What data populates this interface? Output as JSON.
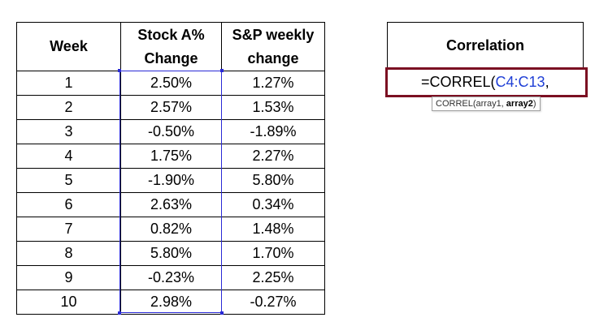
{
  "table": {
    "headers": {
      "week": "Week",
      "stock_a_line1": "Stock A%",
      "stock_a_line2": "Change",
      "sp_line1": "S&P weekly",
      "sp_line2": "change"
    },
    "rows": [
      {
        "week": "1",
        "stock_a": "2.50%",
        "sp": "1.27%"
      },
      {
        "week": "2",
        "stock_a": "2.57%",
        "sp": "1.53%"
      },
      {
        "week": "3",
        "stock_a": "-0.50%",
        "sp": "-1.89%"
      },
      {
        "week": "4",
        "stock_a": "1.75%",
        "sp": "2.27%"
      },
      {
        "week": "5",
        "stock_a": "-1.90%",
        "sp": "5.80%"
      },
      {
        "week": "6",
        "stock_a": "2.63%",
        "sp": "0.34%"
      },
      {
        "week": "7",
        "stock_a": "0.82%",
        "sp": "1.48%"
      },
      {
        "week": "8",
        "stock_a": "5.80%",
        "sp": "1.70%"
      },
      {
        "week": "9",
        "stock_a": "-0.23%",
        "sp": "2.25%"
      },
      {
        "week": "10",
        "stock_a": "2.98%",
        "sp": "-0.27%"
      }
    ]
  },
  "correlation": {
    "header": "Correlation",
    "formula_prefix": "=CORREL(",
    "formula_range": "C4:C13",
    "formula_suffix": ",",
    "tooltip_func": "CORREL(array1, ",
    "tooltip_current_arg": "array2",
    "tooltip_close": ")"
  },
  "colors": {
    "border": "#000000",
    "highlight_border": "#7b0f22",
    "range_reference": "#1f3fd6",
    "selection": "#2a2ad6"
  }
}
